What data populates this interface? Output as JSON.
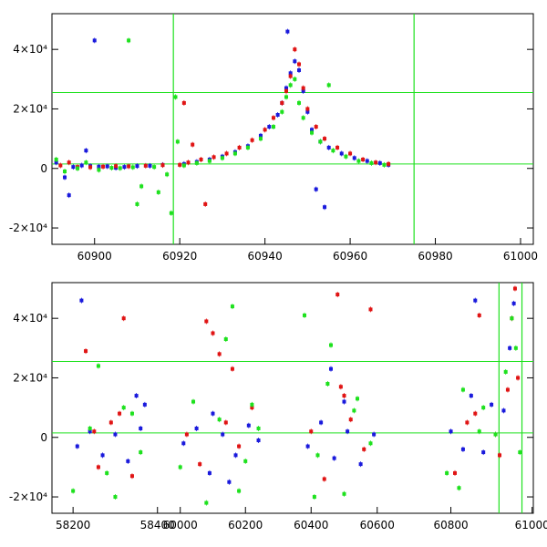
{
  "chart_data": [
    {
      "type": "scatter",
      "title": "",
      "xlabel": "",
      "ylabel": "",
      "xlim": [
        60890,
        61003
      ],
      "ylim": [
        -25500,
        52000
      ],
      "x_ticks": [
        60900,
        60920,
        60940,
        60960,
        60980,
        61000
      ],
      "y_ticks": [
        -20000,
        0,
        20000,
        40000
      ],
      "y_tick_labels": [
        "-2×10⁴",
        "0",
        "2×10⁴",
        "4×10⁴"
      ],
      "hlines": [
        25500,
        1500
      ],
      "vlines": [
        60918.5,
        60975
      ],
      "colors": {
        "blue": "#1a1adc",
        "red": "#e01414",
        "green": "#1ee11e"
      },
      "series": [
        {
          "name": "blue",
          "x": [
            60891,
            60893,
            60895,
            60897,
            60899,
            60901,
            60903,
            60905,
            60907,
            60910,
            60913,
            60916,
            60921,
            60924,
            60927,
            60930,
            60933,
            60936,
            60939,
            60941,
            60943,
            60944,
            60945,
            60946,
            60947,
            60948,
            60949,
            60950,
            60951,
            60953,
            60955,
            60958,
            60961,
            60964,
            60967,
            60969,
            60900,
            60945.3,
            60894,
            60898,
            60952,
            60954
          ],
          "y": [
            2000,
            -3000,
            500,
            1000,
            800,
            600,
            700,
            200,
            500,
            800,
            900,
            1200,
            1500,
            2200,
            3000,
            4000,
            5500,
            7500,
            11000,
            14000,
            18000,
            22000,
            27000,
            32000,
            36000,
            33000,
            26000,
            19000,
            13000,
            9000,
            7000,
            5000,
            3500,
            2500,
            1800,
            1200,
            43000,
            46000,
            -9000,
            6000,
            -7000,
            -13000
          ]
        },
        {
          "name": "red",
          "x": [
            60892,
            60894,
            60896,
            60899,
            60902,
            60905,
            60908,
            60912,
            60916,
            60920,
            60922,
            60925,
            60928,
            60931,
            60934,
            60937,
            60940,
            60942,
            60944,
            60945,
            60946,
            60947,
            60948,
            60949,
            60950,
            60952,
            60954,
            60957,
            60960,
            60963,
            60966,
            60969,
            60921,
            60923,
            60926
          ],
          "y": [
            1000,
            2000,
            500,
            400,
            600,
            800,
            700,
            900,
            1100,
            1200,
            2000,
            3000,
            3800,
            5000,
            7000,
            9500,
            13000,
            17000,
            22000,
            26000,
            31000,
            40000,
            35000,
            27000,
            20000,
            14000,
            10000,
            7000,
            5000,
            3000,
            2000,
            1500,
            22000,
            8000,
            -12000
          ]
        },
        {
          "name": "green",
          "x": [
            60891,
            60893,
            60896,
            60898,
            60901,
            60904,
            60906,
            60909,
            60911,
            60914,
            60917,
            60918,
            60919,
            60921,
            60924,
            60927,
            60930,
            60933,
            60936,
            60939,
            60942,
            60944,
            60945,
            60946,
            60947,
            60948,
            60949,
            60951,
            60953,
            60956,
            60959,
            60962,
            60965,
            60968,
            60908,
            60919.5,
            60915,
            60955,
            60910
          ],
          "y": [
            3000,
            -1000,
            0,
            2000,
            -500,
            200,
            100,
            400,
            -6000,
            500,
            -2000,
            -15000,
            24000,
            1000,
            1800,
            2500,
            3500,
            5000,
            7000,
            10000,
            14000,
            19000,
            24000,
            28000,
            30000,
            22000,
            17000,
            12000,
            9000,
            6000,
            4000,
            2500,
            1800,
            1200,
            43000,
            9000,
            -8000,
            28000,
            -12000
          ]
        }
      ]
    },
    {
      "type": "scatter",
      "title": "",
      "xlabel": "",
      "ylabel": "",
      "xlim": [
        58150,
        61003
      ],
      "ylim": [
        -25500,
        52000
      ],
      "x_ticks": [
        58200,
        58400,
        60000,
        60200,
        60400,
        60600,
        60800,
        61000
      ],
      "y_ticks": [
        -20000,
        0,
        20000,
        40000
      ],
      "y_tick_labels": [
        "-2×10⁴",
        "0",
        "2×10⁴",
        "4×10⁴"
      ],
      "hlines": [
        25500,
        1500
      ],
      "vlines": [
        60918.5,
        60975
      ],
      "season_ranges": [
        [
          58180,
          58380
        ],
        [
          59980,
          60250
        ],
        [
          60370,
          60600
        ],
        [
          60780,
          60975
        ]
      ],
      "colors": {
        "blue": "#1a1adc",
        "red": "#e01414",
        "green": "#1ee11e"
      },
      "series": [
        {
          "name": "blue",
          "x": [
            58210,
            58240,
            58270,
            58300,
            58330,
            58350,
            58360,
            58220,
            58370,
            60010,
            60050,
            60090,
            60130,
            60170,
            60210,
            60240,
            60100,
            60150,
            60390,
            60430,
            60470,
            60510,
            60550,
            60590,
            60460,
            60500,
            60800,
            60830,
            60860,
            60900,
            60930,
            60945,
            60955,
            60850,
            60880
          ],
          "y": [
            -3000,
            2000,
            -6000,
            1000,
            -8000,
            14000,
            3000,
            46000,
            11000,
            -2000,
            3000,
            -12000,
            1000,
            -6000,
            4000,
            -1000,
            8000,
            -15000,
            -3000,
            5000,
            -7000,
            2000,
            -9000,
            1000,
            23000,
            12000,
            2000,
            -4000,
            46000,
            11000,
            9000,
            30000,
            45000,
            14000,
            -5000
          ]
        },
        {
          "name": "red",
          "x": [
            58230,
            58260,
            58290,
            58320,
            58340,
            58250,
            58310,
            60020,
            60060,
            60100,
            60140,
            60180,
            60220,
            60080,
            60120,
            60160,
            60400,
            60440,
            60480,
            60520,
            60560,
            60490,
            60500,
            60580,
            60810,
            60840,
            60870,
            60910,
            60940,
            60950,
            60958,
            60965,
            60860,
            60920
          ],
          "y": [
            29000,
            -10000,
            5000,
            40000,
            -13000,
            2000,
            8000,
            1000,
            -9000,
            35000,
            5000,
            -3000,
            10000,
            39000,
            28000,
            23000,
            2000,
            -14000,
            48000,
            6000,
            -4000,
            17000,
            14000,
            43000,
            -12000,
            5000,
            41000,
            1000,
            16000,
            40000,
            50000,
            20000,
            8000,
            -6000
          ]
        },
        {
          "name": "green",
          "x": [
            58200,
            58240,
            58280,
            58320,
            58360,
            58260,
            58300,
            58340,
            60000,
            60040,
            60080,
            60120,
            60160,
            60200,
            60240,
            60140,
            60180,
            60220,
            60380,
            60420,
            60460,
            60500,
            60540,
            60580,
            60410,
            60450,
            60530,
            60790,
            60830,
            60870,
            60910,
            60935,
            60950,
            60960,
            60970,
            60820,
            60880
          ],
          "y": [
            -18000,
            3000,
            -12000,
            10000,
            -5000,
            24000,
            -20000,
            8000,
            -10000,
            12000,
            -22000,
            6000,
            44000,
            -8000,
            3000,
            33000,
            -18000,
            11000,
            41000,
            -6000,
            31000,
            -19000,
            13000,
            -2000,
            -20000,
            18000,
            9000,
            -12000,
            16000,
            2000,
            1000,
            22000,
            40000,
            30000,
            -5000,
            -17000,
            10000
          ]
        }
      ]
    }
  ]
}
